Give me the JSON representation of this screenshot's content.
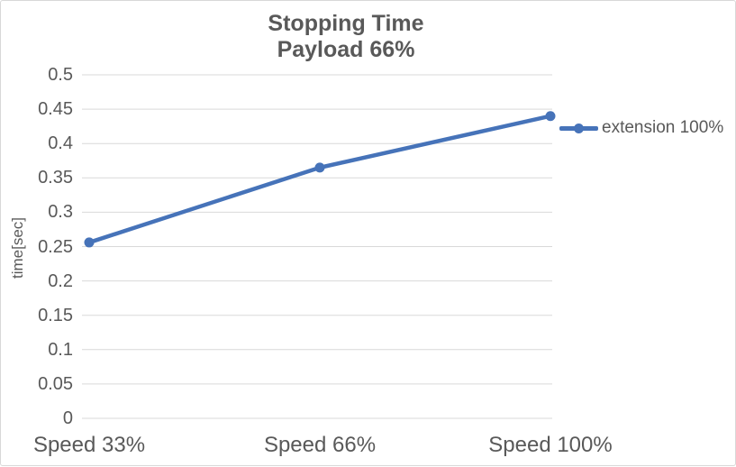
{
  "colors": {
    "series": "#4673B9",
    "text": "#595959",
    "gridline": "#D9D9D9",
    "border": "#D8D8D8",
    "background": "#FFFFFF"
  },
  "chart_data": {
    "type": "line",
    "title": "Stopping Time",
    "subtitle": "Payload 66%",
    "categories": [
      "Speed 33%",
      "Speed 66%",
      "Speed 100%"
    ],
    "series": [
      {
        "name": "extension 100%",
        "values": [
          0.256,
          0.365,
          0.44
        ]
      }
    ],
    "xlabel": "",
    "ylabel": "time[sec]",
    "ylim": [
      0,
      0.5
    ],
    "yticks": [
      0,
      0.05,
      0.1,
      0.15,
      0.2,
      0.25,
      0.3,
      0.35,
      0.4,
      0.45,
      0.5
    ],
    "grid": "horizontal",
    "legend_position": "right",
    "marker": "circle"
  }
}
